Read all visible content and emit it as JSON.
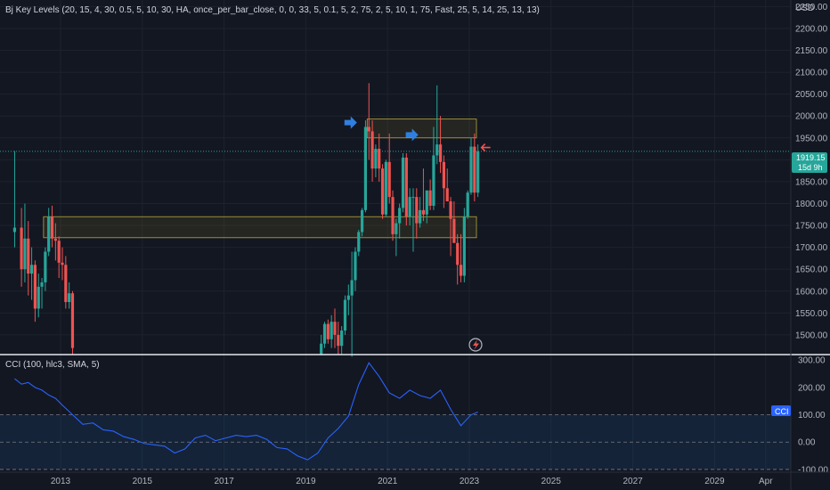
{
  "indicator_header": "Bj Key Levels (20, 15, 4, 30, 0.5, 5, 10, 30, HA, once_per_bar_close, 0, 0, 33, 5, 0.1, 5, 2, 75, 2, 5, 10, 1, 75, Fast, 25, 5, 14, 25, 13, 13)",
  "cci_header": "CCI (100, hlc3, SMA, 5)",
  "currency": "USD",
  "last_price": "1919.15",
  "countdown": "15d 9h",
  "cci_badge": "CCI",
  "colors": {
    "background": "#131722",
    "up": "#26a69a",
    "down": "#ef5350",
    "cci_line": "#2962ff",
    "zone_border": "#b8a83a",
    "arrow_blue": "#2f7fe0",
    "arrow_red": "#ef5350"
  },
  "chart_data": [
    {
      "type": "candlestick",
      "title": "Bj Key Levels (20, 15, 4, 30, 0.5, 5, 10, 30, HA, once_per_bar_close, 0, 0, 33, 5, 0.1, 5, 2, 75, 2, 5, 10, 1, 75, Fast, 25, 5, 14, 25, 13, 13)",
      "ylabel": "USD",
      "ylim": [
        1455,
        2265
      ],
      "yticks": [
        2250,
        2200,
        2150,
        2100,
        2050,
        2000,
        1950,
        1900,
        1850,
        1800,
        1750,
        1700,
        1650,
        1600,
        1550,
        1500
      ],
      "x_ticks": [
        "2013",
        "2015",
        "2017",
        "2019",
        "2021",
        "2023",
        "2025",
        "2027",
        "2029",
        "Apr"
      ],
      "last_price": 1919.15,
      "zones": [
        {
          "from": "2012-08",
          "to": "2023-01",
          "low": 1722,
          "high": 1770
        },
        {
          "from": "2020-07",
          "to": "2023-01",
          "low": 1950,
          "high": 1993
        }
      ],
      "markers": [
        {
          "type": "arrow-right",
          "date": "2020-04",
          "price": 1985,
          "color": "blue"
        },
        {
          "type": "arrow-right",
          "date": "2021-10",
          "price": 1957,
          "color": "blue"
        },
        {
          "type": "arrow-left",
          "date": "2023-03",
          "price": 1928,
          "color": "red"
        }
      ],
      "series": [
        {
          "date": "2011-11",
          "open": 1735,
          "high": 1920,
          "low": 1700,
          "close": 1745
        },
        {
          "date": "2012-01",
          "open": 1745,
          "high": 1790,
          "low": 1610,
          "close": 1650
        },
        {
          "date": "2012-02",
          "open": 1650,
          "high": 1800,
          "low": 1620,
          "close": 1720
        },
        {
          "date": "2012-03",
          "open": 1720,
          "high": 1760,
          "low": 1590,
          "close": 1640
        },
        {
          "date": "2012-04",
          "open": 1640,
          "high": 1700,
          "low": 1580,
          "close": 1660
        },
        {
          "date": "2012-05",
          "open": 1660,
          "high": 1670,
          "low": 1530,
          "close": 1560
        },
        {
          "date": "2012-06",
          "open": 1560,
          "high": 1640,
          "low": 1540,
          "close": 1610
        },
        {
          "date": "2012-07",
          "open": 1610,
          "high": 1630,
          "low": 1560,
          "close": 1620
        },
        {
          "date": "2012-08",
          "open": 1620,
          "high": 1700,
          "low": 1600,
          "close": 1690
        },
        {
          "date": "2012-09",
          "open": 1690,
          "high": 1790,
          "low": 1680,
          "close": 1770
        },
        {
          "date": "2012-10",
          "open": 1770,
          "high": 1795,
          "low": 1700,
          "close": 1720
        },
        {
          "date": "2012-11",
          "open": 1720,
          "high": 1755,
          "low": 1670,
          "close": 1715
        },
        {
          "date": "2012-12",
          "open": 1715,
          "high": 1725,
          "low": 1630,
          "close": 1665
        },
        {
          "date": "2013-01",
          "open": 1665,
          "high": 1700,
          "low": 1625,
          "close": 1660
        },
        {
          "date": "2013-02",
          "open": 1660,
          "high": 1680,
          "low": 1560,
          "close": 1575
        },
        {
          "date": "2013-03",
          "open": 1575,
          "high": 1620,
          "low": 1560,
          "close": 1595
        },
        {
          "date": "2013-04",
          "open": 1595,
          "high": 1600,
          "low": 1455,
          "close": 1470
        }
      ],
      "series_2": [
        {
          "date": "2019-05",
          "open": 1455,
          "high": 1500,
          "low": 1455,
          "close": 1480
        },
        {
          "date": "2019-06",
          "open": 1480,
          "high": 1530,
          "low": 1470,
          "close": 1525
        },
        {
          "date": "2019-07",
          "open": 1525,
          "high": 1535,
          "low": 1480,
          "close": 1490
        },
        {
          "date": "2019-08",
          "open": 1490,
          "high": 1545,
          "low": 1470,
          "close": 1530
        },
        {
          "date": "2019-09",
          "open": 1530,
          "high": 1560,
          "low": 1470,
          "close": 1500
        },
        {
          "date": "2019-10",
          "open": 1500,
          "high": 1530,
          "low": 1455,
          "close": 1475
        },
        {
          "date": "2019-11",
          "open": 1475,
          "high": 1520,
          "low": 1455,
          "close": 1510
        },
        {
          "date": "2019-12",
          "open": 1510,
          "high": 1590,
          "low": 1500,
          "close": 1580
        },
        {
          "date": "2020-01",
          "open": 1580,
          "high": 1615,
          "low": 1545,
          "close": 1590
        },
        {
          "date": "2020-02",
          "open": 1590,
          "high": 1690,
          "low": 1450,
          "close": 1625
        },
        {
          "date": "2020-03",
          "open": 1625,
          "high": 1700,
          "low": 1600,
          "close": 1690
        },
        {
          "date": "2020-04",
          "open": 1690,
          "high": 1740,
          "low": 1680,
          "close": 1735
        },
        {
          "date": "2020-05",
          "open": 1735,
          "high": 1790,
          "low": 1725,
          "close": 1785
        },
        {
          "date": "2020-06",
          "open": 1785,
          "high": 1990,
          "low": 1780,
          "close": 1975
        },
        {
          "date": "2020-07",
          "open": 1975,
          "high": 2075,
          "low": 1900,
          "close": 1965
        },
        {
          "date": "2020-08",
          "open": 1965,
          "high": 1990,
          "low": 1850,
          "close": 1880
        },
        {
          "date": "2020-09",
          "open": 1880,
          "high": 1935,
          "low": 1860,
          "close": 1925
        },
        {
          "date": "2020-10",
          "open": 1925,
          "high": 1960,
          "low": 1850,
          "close": 1880
        },
        {
          "date": "2020-11",
          "open": 1880,
          "high": 1890,
          "low": 1765,
          "close": 1775
        },
        {
          "date": "2020-12",
          "open": 1775,
          "high": 1900,
          "low": 1770,
          "close": 1895
        },
        {
          "date": "2021-01",
          "open": 1895,
          "high": 1960,
          "low": 1800,
          "close": 1815
        },
        {
          "date": "2021-02",
          "open": 1815,
          "high": 1830,
          "low": 1715,
          "close": 1730
        },
        {
          "date": "2021-03",
          "open": 1730,
          "high": 1765,
          "low": 1680,
          "close": 1755
        },
        {
          "date": "2021-04",
          "open": 1755,
          "high": 1800,
          "low": 1720,
          "close": 1790
        },
        {
          "date": "2021-05",
          "open": 1790,
          "high": 1915,
          "low": 1780,
          "close": 1905
        },
        {
          "date": "2021-06",
          "open": 1905,
          "high": 1915,
          "low": 1750,
          "close": 1770
        },
        {
          "date": "2021-07",
          "open": 1770,
          "high": 1835,
          "low": 1750,
          "close": 1815
        },
        {
          "date": "2021-08",
          "open": 1815,
          "high": 1835,
          "low": 1690,
          "close": 1815
        },
        {
          "date": "2021-09",
          "open": 1815,
          "high": 1835,
          "low": 1720,
          "close": 1755
        },
        {
          "date": "2021-10",
          "open": 1755,
          "high": 1815,
          "low": 1745,
          "close": 1785
        },
        {
          "date": "2021-11",
          "open": 1785,
          "high": 1880,
          "low": 1760,
          "close": 1775
        },
        {
          "date": "2021-12",
          "open": 1775,
          "high": 1830,
          "low": 1755,
          "close": 1830
        },
        {
          "date": "2022-01",
          "open": 1830,
          "high": 1855,
          "low": 1785,
          "close": 1795
        },
        {
          "date": "2022-02",
          "open": 1795,
          "high": 1975,
          "low": 1785,
          "close": 1910
        },
        {
          "date": "2022-03",
          "open": 1910,
          "high": 2070,
          "low": 1890,
          "close": 1935
        },
        {
          "date": "2022-04",
          "open": 1935,
          "high": 2000,
          "low": 1870,
          "close": 1895
        },
        {
          "date": "2022-05",
          "open": 1895,
          "high": 1910,
          "low": 1790,
          "close": 1835
        },
        {
          "date": "2022-06",
          "open": 1835,
          "high": 1880,
          "low": 1805,
          "close": 1805
        },
        {
          "date": "2022-07",
          "open": 1805,
          "high": 1815,
          "low": 1680,
          "close": 1765
        },
        {
          "date": "2022-08",
          "open": 1765,
          "high": 1805,
          "low": 1710,
          "close": 1710
        },
        {
          "date": "2022-09",
          "open": 1710,
          "high": 1730,
          "low": 1615,
          "close": 1660
        },
        {
          "date": "2022-10",
          "open": 1660,
          "high": 1730,
          "low": 1620,
          "close": 1635
        },
        {
          "date": "2022-11",
          "open": 1635,
          "high": 1790,
          "low": 1620,
          "close": 1770
        },
        {
          "date": "2022-12",
          "open": 1770,
          "high": 1830,
          "low": 1765,
          "close": 1825
        },
        {
          "date": "2023-01",
          "open": 1825,
          "high": 1950,
          "low": 1820,
          "close": 1930
        },
        {
          "date": "2023-02",
          "open": 1930,
          "high": 1960,
          "low": 1805,
          "close": 1825
        },
        {
          "date": "2023-03",
          "open": 1825,
          "high": 1935,
          "low": 1815,
          "close": 1919.15
        }
      ]
    },
    {
      "type": "line",
      "title": "CCI (100, hlc3, SMA, 5)",
      "ylim": [
        -110,
        320
      ],
      "yticks": [
        300,
        200,
        100,
        0,
        -100
      ],
      "band": [
        -100,
        100
      ],
      "x": [
        "2011-11",
        "2012-01",
        "2012-03",
        "2012-05",
        "2012-07",
        "2012-09",
        "2012-11",
        "2013-01",
        "2013-04",
        "2013-07",
        "2013-10",
        "2014-01",
        "2014-04",
        "2014-07",
        "2014-10",
        "2015-01",
        "2015-04",
        "2015-07",
        "2015-10",
        "2016-01",
        "2016-04",
        "2016-07",
        "2016-10",
        "2017-01",
        "2017-04",
        "2017-07",
        "2017-10",
        "2018-01",
        "2018-04",
        "2018-07",
        "2018-10",
        "2019-01",
        "2019-04",
        "2019-07",
        "2019-10",
        "2020-01",
        "2020-04",
        "2020-07",
        "2020-10",
        "2021-01",
        "2021-04",
        "2021-07",
        "2021-10",
        "2022-01",
        "2022-04",
        "2022-07",
        "2022-10",
        "2023-01",
        "2023-03"
      ],
      "values": [
        232,
        212,
        218,
        200,
        190,
        172,
        160,
        135,
        100,
        65,
        70,
        45,
        40,
        20,
        10,
        -5,
        -10,
        -15,
        -40,
        -25,
        15,
        25,
        5,
        15,
        25,
        20,
        25,
        10,
        -20,
        -25,
        -50,
        -65,
        -40,
        15,
        50,
        95,
        210,
        290,
        240,
        180,
        160,
        190,
        170,
        160,
        190,
        120,
        60,
        100,
        110
      ]
    }
  ]
}
